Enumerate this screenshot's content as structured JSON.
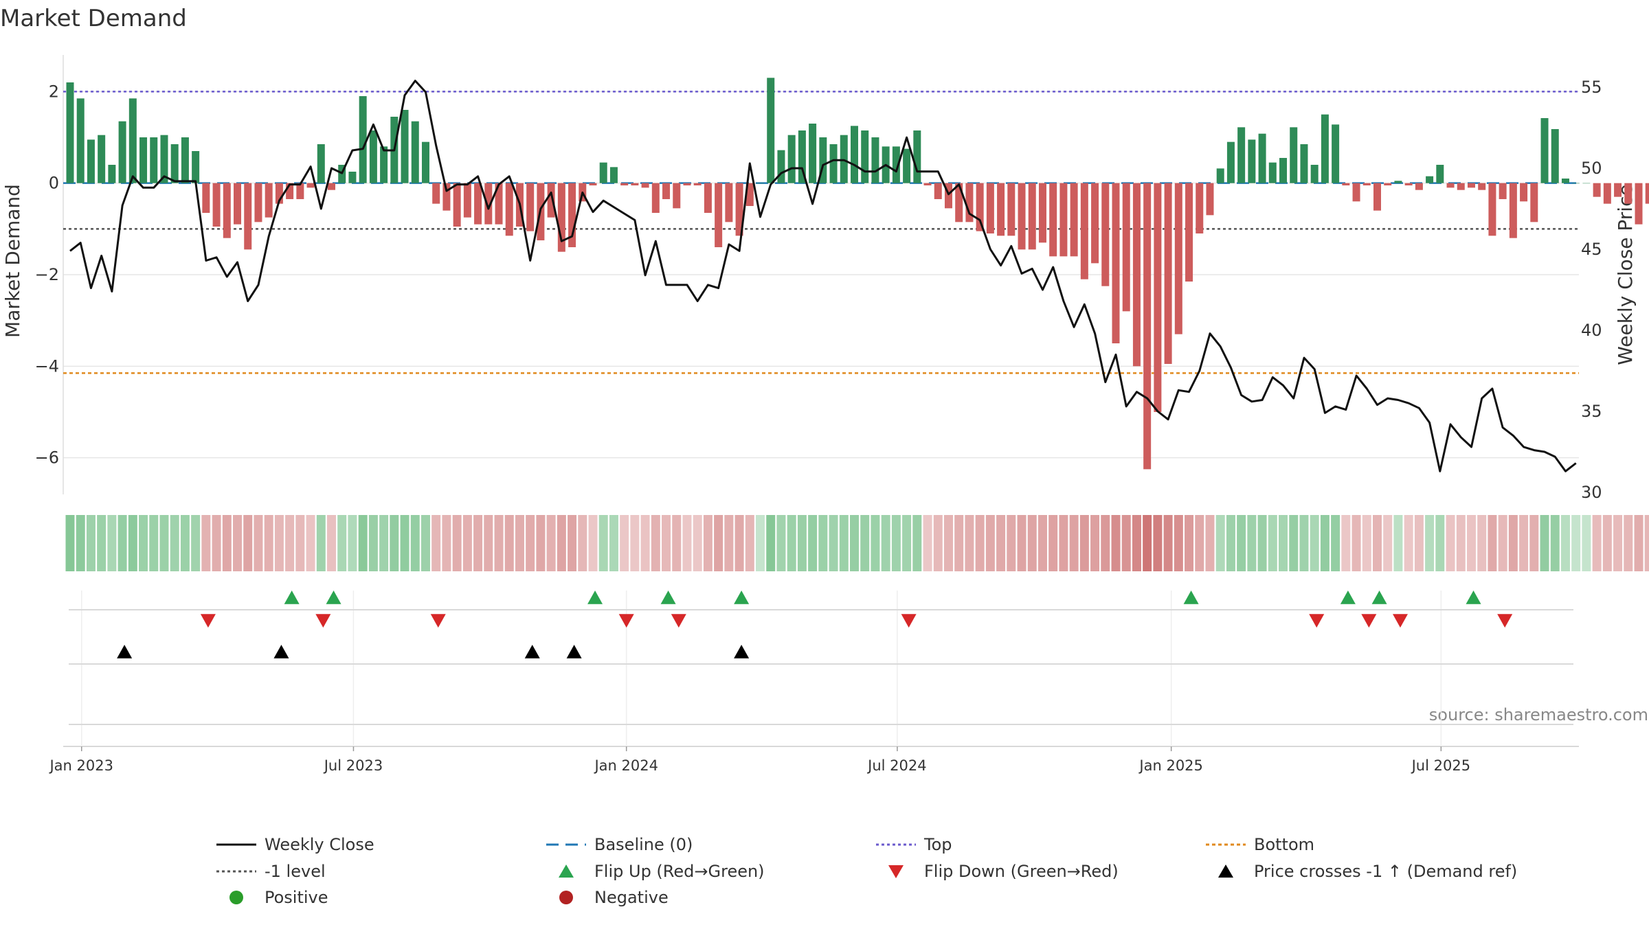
{
  "chart_data": {
    "type": "bar",
    "title": "Market Demand",
    "ylabel_left": "Market Demand",
    "ylabel_right": "Weekly Close Price",
    "source": "source: sharemaestro.com",
    "ylim_left": [
      -6.8,
      2.8
    ],
    "ylim_right": [
      30,
      56
    ],
    "yticks_left": [
      {
        "v": 2,
        "label": "2"
      },
      {
        "v": 0,
        "label": "0"
      },
      {
        "v": -2,
        "label": "−2"
      },
      {
        "v": -4,
        "label": "−4"
      },
      {
        "v": -6,
        "label": "−6"
      }
    ],
    "yticks_right": [
      {
        "v": 55,
        "label": "55"
      },
      {
        "v": 50,
        "label": "50"
      },
      {
        "v": 45,
        "label": "45"
      },
      {
        "v": 40,
        "label": "40"
      },
      {
        "v": 35,
        "label": "35"
      },
      {
        "v": 30,
        "label": "30"
      }
    ],
    "xticks": [
      {
        "w": 1.1,
        "label": "Jan 2023"
      },
      {
        "w": 27.1,
        "label": "Jul 2023"
      },
      {
        "w": 53.2,
        "label": "Jan 2024"
      },
      {
        "w": 79.1,
        "label": "Jul 2024"
      },
      {
        "w": 105.3,
        "label": "Jan 2025"
      },
      {
        "w": 131.1,
        "label": "Jul 2025"
      }
    ],
    "reference_lines": {
      "top": 2.0,
      "bottom": -4.15,
      "minus_one": -1.0,
      "baseline": 0.0
    },
    "demand": [
      2.2,
      1.85,
      0.95,
      1.05,
      0.4,
      1.35,
      1.85,
      1.0,
      1.0,
      1.05,
      0.85,
      1.0,
      0.7,
      -0.65,
      -0.95,
      -1.2,
      -0.9,
      -1.45,
      -0.85,
      -0.75,
      -0.45,
      -0.35,
      -0.35,
      -0.1,
      0.85,
      -0.15,
      0.4,
      0.25,
      1.9,
      1.15,
      0.8,
      1.45,
      1.6,
      1.35,
      0.9,
      -0.45,
      -0.6,
      -0.95,
      -0.75,
      -0.9,
      -0.9,
      -0.9,
      -1.15,
      -0.95,
      -1.05,
      -1.25,
      -0.75,
      -1.5,
      -1.4,
      -0.4,
      -0.05,
      0.45,
      0.35,
      -0.05,
      -0.05,
      -0.1,
      -0.65,
      -0.35,
      -0.55,
      -0.05,
      -0.05,
      -0.65,
      -1.4,
      -0.85,
      -1.15,
      -0.5,
      0.0,
      2.3,
      0.72,
      1.05,
      1.15,
      1.3,
      1.0,
      0.85,
      1.05,
      1.25,
      1.15,
      1.0,
      0.8,
      0.8,
      0.75,
      1.15,
      -0.05,
      -0.35,
      -0.55,
      -0.85,
      -0.85,
      -1.05,
      -1.1,
      -1.15,
      -1.15,
      -1.45,
      -1.45,
      -1.3,
      -1.6,
      -1.6,
      -1.6,
      -2.1,
      -1.75,
      -2.25,
      -3.5,
      -2.8,
      -4.0,
      -6.25,
      -5.0,
      -3.95,
      -3.3,
      -2.15,
      -1.1,
      -0.7,
      0.32,
      0.9,
      1.22,
      0.95,
      1.08,
      0.45,
      0.55,
      1.22,
      0.85,
      0.4,
      1.5,
      1.28,
      -0.05,
      -0.4,
      -0.05,
      -0.6,
      -0.05,
      0.05,
      -0.05,
      -0.15,
      0.15,
      0.4,
      -0.1,
      -0.15,
      -0.1,
      -0.15,
      -1.15,
      -0.35,
      -1.2,
      -0.4,
      -0.85,
      1.42,
      1.18,
      0.1,
      0.0,
      0.0,
      -0.3,
      -0.45,
      -0.3,
      -0.45,
      -0.9,
      -0.45
    ],
    "price": [
      44.9,
      45.4,
      42.6,
      44.6,
      42.4,
      47.7,
      49.5,
      48.8,
      48.8,
      49.5,
      49.2,
      49.2,
      49.2,
      44.3,
      44.5,
      43.3,
      44.2,
      41.8,
      42.8,
      45.8,
      48.0,
      49.0,
      49.0,
      50.1,
      47.5,
      50.0,
      49.7,
      51.1,
      51.2,
      52.7,
      51.1,
      51.1,
      54.5,
      55.4,
      54.7,
      51.4,
      48.6,
      49.0,
      49.0,
      49.5,
      47.5,
      49.0,
      49.5,
      47.8,
      44.3,
      47.5,
      48.5,
      45.5,
      45.8,
      48.5,
      47.3,
      48.0,
      47.6,
      47.2,
      46.8,
      43.4,
      45.5,
      42.8,
      42.8,
      42.8,
      41.8,
      42.8,
      42.6,
      45.3,
      44.9,
      50.3,
      47.0,
      49.0,
      49.7,
      50.0,
      50.0,
      47.8,
      50.2,
      50.5,
      50.5,
      50.2,
      49.8,
      49.8,
      50.2,
      49.8,
      51.9,
      49.8,
      49.8,
      49.8,
      48.4,
      49.0,
      47.2,
      46.8,
      45.0,
      44.0,
      45.2,
      43.5,
      43.8,
      42.5,
      43.9,
      41.8,
      40.2,
      41.6,
      39.8,
      36.8,
      38.5,
      35.3,
      36.2,
      35.8,
      35.0,
      34.5,
      36.3,
      36.2,
      37.5,
      39.8,
      39.0,
      37.7,
      36.0,
      35.6,
      35.7,
      37.1,
      36.6,
      35.8,
      38.3,
      37.6,
      34.9,
      35.3,
      35.1,
      37.2,
      36.4,
      35.4,
      35.8,
      35.7,
      35.5,
      35.2,
      34.3,
      31.3,
      34.2,
      33.4,
      32.8,
      35.8,
      36.4,
      34.0,
      33.5,
      32.8,
      32.6,
      32.5,
      32.2,
      31.3,
      31.8
    ],
    "flip_up_weeks": [
      21.2,
      25.2,
      50.2,
      57.2,
      64.2,
      107.2,
      122.2,
      125.2,
      134.2
    ],
    "flip_down_weeks": [
      13.2,
      24.2,
      35.2,
      53.2,
      58.2,
      80.2,
      119.2,
      124.2,
      127.2,
      137.2
    ],
    "price_cross_weeks": [
      5.2,
      20.2,
      44.2,
      48.2,
      64.2
    ],
    "legend": [
      {
        "label": "Weekly Close",
        "symbol": "line-black"
      },
      {
        "label": "Baseline (0)",
        "symbol": "dash-blue"
      },
      {
        "label": "Top",
        "symbol": "dot-purple"
      },
      {
        "label": "Bottom",
        "symbol": "dot-orange"
      },
      {
        "label": "-1 level",
        "symbol": "dot-gray"
      },
      {
        "label": "Flip Up (Red→Green)",
        "symbol": "tri-up-green"
      },
      {
        "label": "Flip Down (Green→Red)",
        "symbol": "tri-down-red"
      },
      {
        "label": "Price crosses -1 ↑ (Demand ref)",
        "symbol": "tri-up-black"
      },
      {
        "label": "Positive",
        "symbol": "circle-green"
      },
      {
        "label": "Negative",
        "symbol": "circle-red"
      }
    ],
    "colors": {
      "positive": "#2e8b57",
      "negative": "#cd5c5c",
      "price": "#111111",
      "top": "#6a5acd",
      "bottom": "#e08a1e",
      "minus_one": "#555555",
      "baseline": "#1f77b4",
      "flip_up": "#2aa44f",
      "flip_down": "#d62728",
      "cross": "#000000",
      "positive_dot": "#2a9d2a",
      "negative_dot": "#b22222"
    }
  }
}
